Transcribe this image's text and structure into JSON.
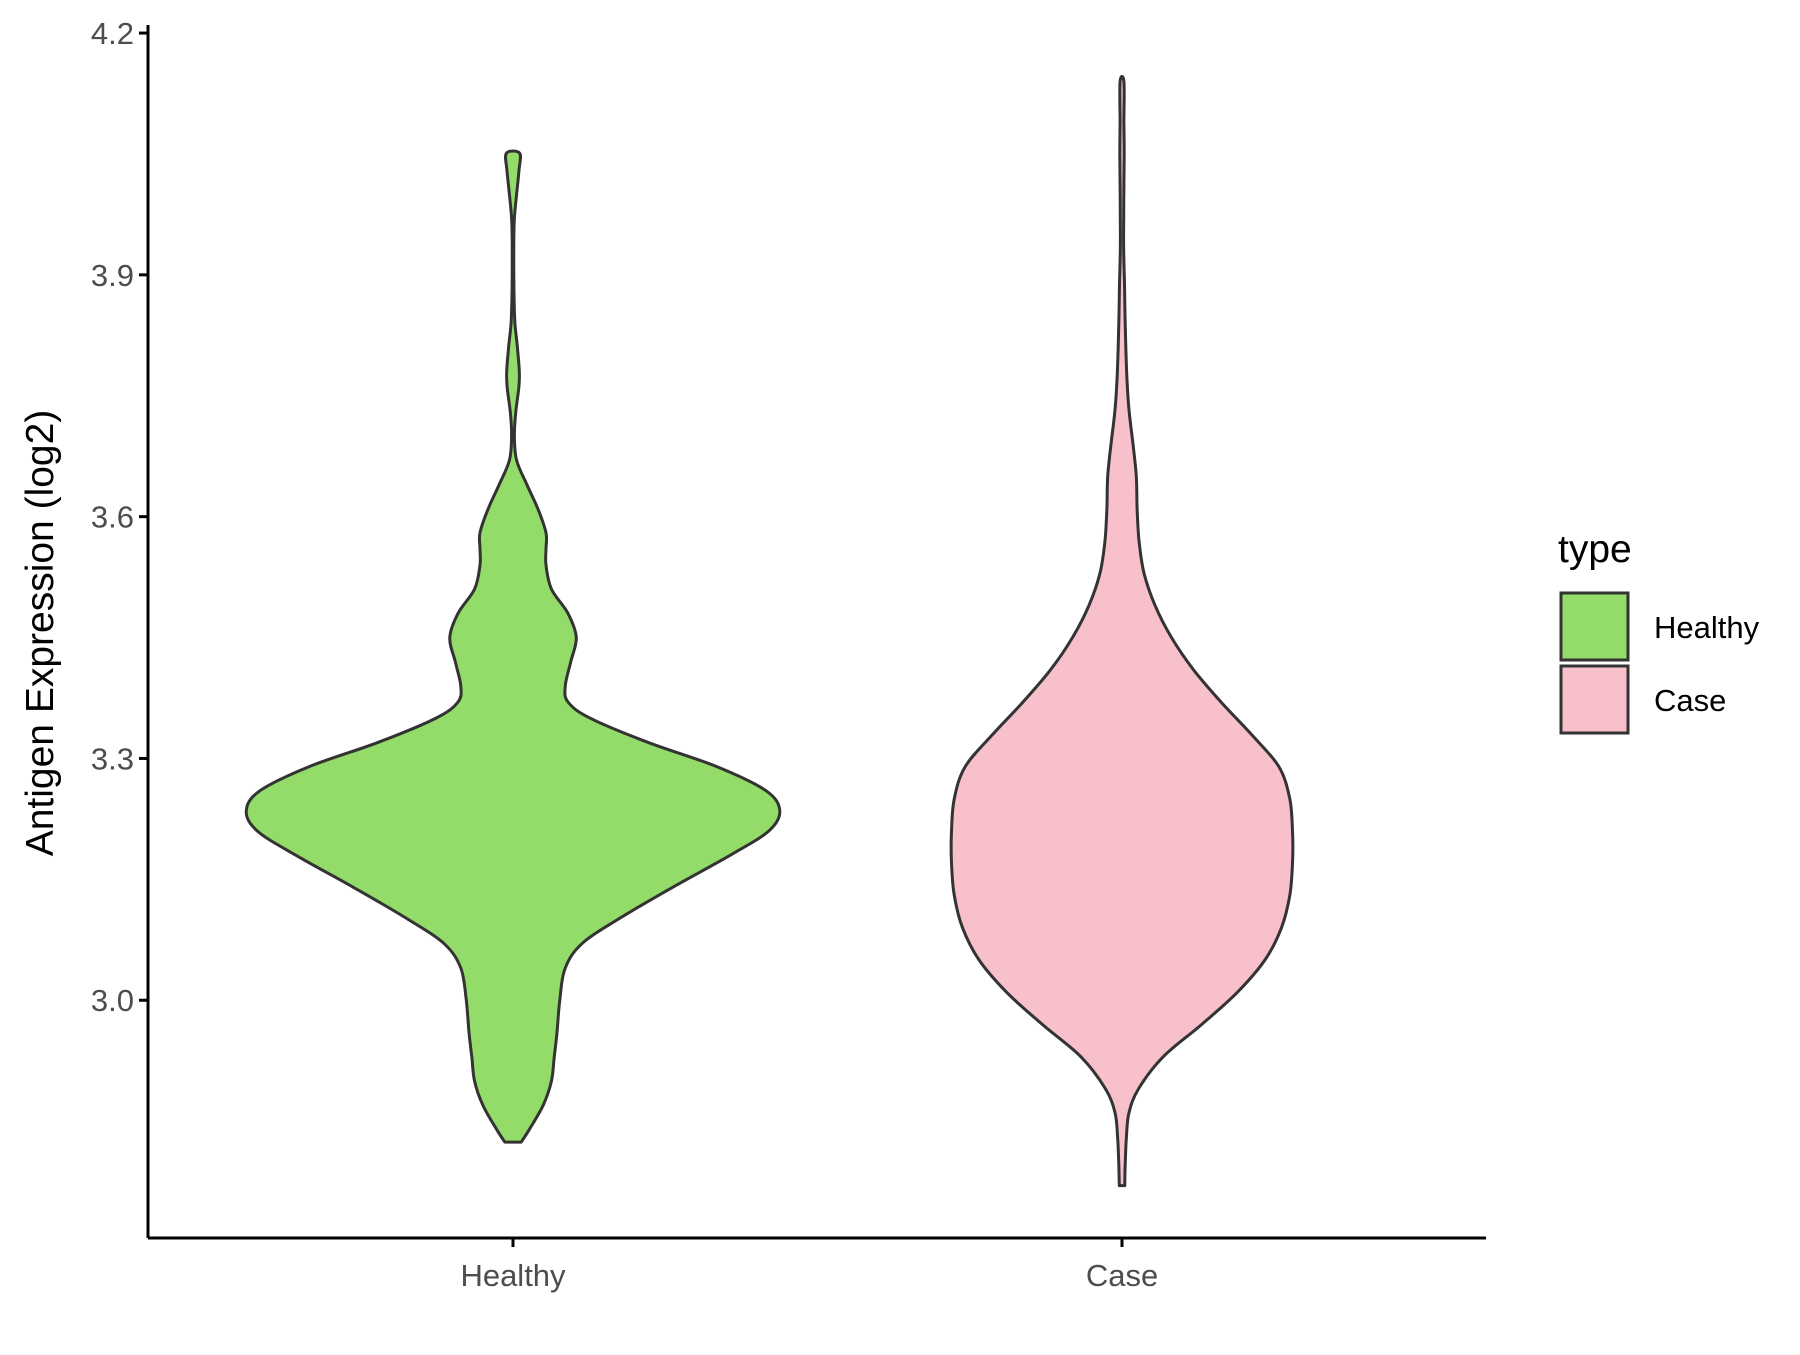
{
  "chart_data": {
    "type": "violin",
    "title": "",
    "xlabel": "",
    "ylabel": "Antigen Expression (log2)",
    "ylim": [
      2.705,
      4.21
    ],
    "yticks": [
      "3.0",
      "3.3",
      "3.6",
      "3.9",
      "4.2"
    ],
    "categories": [
      "Healthy",
      "Case"
    ],
    "legend": {
      "title": "type",
      "position": "right",
      "entries": [
        "Healthy",
        "Case"
      ]
    },
    "grid": false,
    "series": [
      {
        "name": "Healthy",
        "color": "#93DC6A",
        "outline": "#333333",
        "range": [
          2.824,
          4.051
        ],
        "profile": [
          [
            2.824,
            0.03
          ],
          [
            2.84,
            0.06
          ],
          [
            2.87,
            0.11
          ],
          [
            2.9,
            0.14
          ],
          [
            2.93,
            0.15
          ],
          [
            2.96,
            0.16
          ],
          [
            3.0,
            0.17
          ],
          [
            3.04,
            0.19
          ],
          [
            3.07,
            0.25
          ],
          [
            3.1,
            0.38
          ],
          [
            3.14,
            0.58
          ],
          [
            3.18,
            0.79
          ],
          [
            3.21,
            0.93
          ],
          [
            3.235,
            0.97
          ],
          [
            3.26,
            0.92
          ],
          [
            3.29,
            0.74
          ],
          [
            3.32,
            0.49
          ],
          [
            3.35,
            0.28
          ],
          [
            3.37,
            0.2
          ],
          [
            3.39,
            0.19
          ],
          [
            3.42,
            0.21
          ],
          [
            3.45,
            0.23
          ],
          [
            3.48,
            0.2
          ],
          [
            3.51,
            0.14
          ],
          [
            3.54,
            0.12
          ],
          [
            3.56,
            0.12
          ],
          [
            3.58,
            0.12
          ],
          [
            3.61,
            0.09
          ],
          [
            3.64,
            0.05
          ],
          [
            3.67,
            0.013
          ],
          [
            3.7,
            0.005
          ],
          [
            3.73,
            0.01
          ],
          [
            3.76,
            0.021
          ],
          [
            3.78,
            0.023
          ],
          [
            3.81,
            0.016
          ],
          [
            3.84,
            0.007
          ],
          [
            3.87,
            0.004
          ],
          [
            3.9,
            0.003
          ],
          [
            3.94,
            0.003
          ],
          [
            3.97,
            0.005
          ],
          [
            4.0,
            0.013
          ],
          [
            4.03,
            0.022
          ],
          [
            4.051,
            0.024
          ]
        ]
      },
      {
        "name": "Case",
        "color": "#F7C0CB",
        "outline": "#333333",
        "range": [
          2.77,
          4.14
        ],
        "profile": [
          [
            2.77,
            0.01
          ],
          [
            2.8,
            0.012
          ],
          [
            2.83,
            0.016
          ],
          [
            2.86,
            0.025
          ],
          [
            2.89,
            0.06
          ],
          [
            2.93,
            0.15
          ],
          [
            2.97,
            0.29
          ],
          [
            3.01,
            0.42
          ],
          [
            3.05,
            0.52
          ],
          [
            3.09,
            0.58
          ],
          [
            3.13,
            0.61
          ],
          [
            3.17,
            0.62
          ],
          [
            3.21,
            0.62
          ],
          [
            3.25,
            0.61
          ],
          [
            3.29,
            0.57
          ],
          [
            3.33,
            0.47
          ],
          [
            3.37,
            0.36
          ],
          [
            3.41,
            0.26
          ],
          [
            3.45,
            0.18
          ],
          [
            3.49,
            0.12
          ],
          [
            3.53,
            0.08
          ],
          [
            3.57,
            0.062
          ],
          [
            3.61,
            0.055
          ],
          [
            3.65,
            0.052
          ],
          [
            3.69,
            0.04
          ],
          [
            3.73,
            0.026
          ],
          [
            3.77,
            0.018
          ],
          [
            3.81,
            0.014
          ],
          [
            3.85,
            0.011
          ],
          [
            3.89,
            0.009
          ],
          [
            3.93,
            0.006
          ],
          [
            3.97,
            0.006
          ],
          [
            4.01,
            0.007
          ],
          [
            4.05,
            0.008
          ],
          [
            4.09,
            0.007
          ],
          [
            4.14,
            0.007
          ]
        ]
      }
    ]
  }
}
